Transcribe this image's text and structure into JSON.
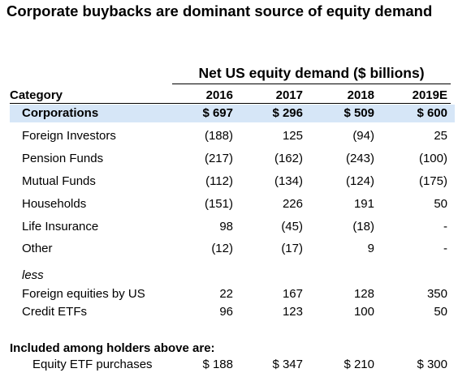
{
  "title": "Corporate buybacks are dominant source of equity demand",
  "table": {
    "group_header": "Net US equity demand ($ billions)",
    "columns": [
      "Category",
      "2016",
      "2017",
      "2018",
      "2019E"
    ],
    "rows": [
      [
        "Corporations",
        "$ 697",
        "$ 296",
        "$ 509",
        "$ 600"
      ],
      [
        "Foreign Investors",
        "(188)",
        "125",
        "(94)",
        "25"
      ],
      [
        "Pension Funds",
        "(217)",
        "(162)",
        "(243)",
        "(100)"
      ],
      [
        "Mutual Funds",
        "(112)",
        "(134)",
        "(124)",
        "(175)"
      ],
      [
        "Households",
        "(151)",
        "226",
        "191",
        "50"
      ],
      [
        "Life Insurance",
        "98",
        "(45)",
        "(18)",
        "-"
      ],
      [
        "Other",
        "(12)",
        "(17)",
        "9",
        "-"
      ]
    ],
    "less_label": "less",
    "less_rows": [
      [
        "Foreign equities by US",
        "22",
        "167",
        "128",
        "350"
      ],
      [
        "Credit ETFs",
        "96",
        "123",
        "100",
        "50"
      ]
    ],
    "included_label": "Included among holders above are:",
    "included_rows": [
      [
        "Equity ETF purchases",
        "$ 188",
        "$ 347",
        "$ 210",
        "$ 300"
      ]
    ]
  }
}
